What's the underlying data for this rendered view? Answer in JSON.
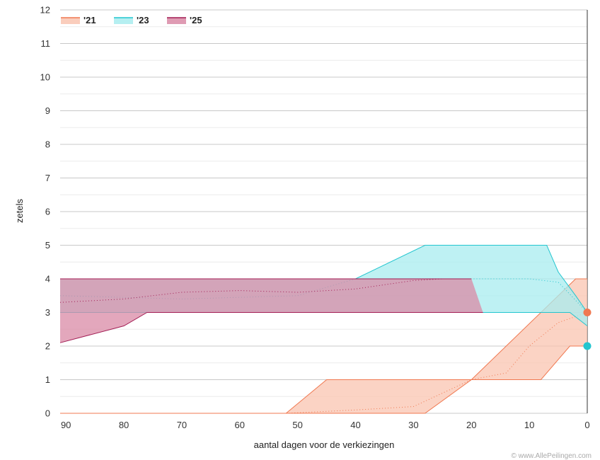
{
  "chart_data": {
    "type": "area",
    "xlabel": "aantal dagen voor de verkiezingen",
    "ylabel": "zetels",
    "xlim": [
      91,
      0
    ],
    "ylim": [
      0,
      12
    ],
    "x_ticks": [
      "90",
      "80",
      "70",
      "60",
      "50",
      "40",
      "30",
      "20",
      "10",
      "0"
    ],
    "y_ticks": [
      "0",
      "1",
      "2",
      "3",
      "4",
      "5",
      "6",
      "7",
      "8",
      "9",
      "10",
      "11",
      "12"
    ],
    "grid": true,
    "legend_position": "top-left",
    "credit": "© www.AllePeilingen.com",
    "series": [
      {
        "name": "'21",
        "color": "#f07850",
        "fill": "#f9c4b0",
        "upper": [
          [
            91,
            0
          ],
          [
            52,
            0
          ],
          [
            45,
            1
          ],
          [
            40,
            1
          ],
          [
            30,
            1
          ],
          [
            20,
            1
          ],
          [
            14,
            2
          ],
          [
            8,
            3
          ],
          [
            2,
            4
          ],
          [
            0,
            4
          ]
        ],
        "lower": [
          [
            91,
            0
          ],
          [
            50,
            0
          ],
          [
            40,
            0
          ],
          [
            28,
            0
          ],
          [
            20,
            1
          ],
          [
            15,
            1
          ],
          [
            8,
            1
          ],
          [
            3,
            2
          ],
          [
            0,
            2
          ]
        ],
        "trend": [
          [
            52,
            0
          ],
          [
            40,
            0.1
          ],
          [
            30,
            0.2
          ],
          [
            25,
            0.6
          ],
          [
            20,
            1
          ],
          [
            14,
            1.2
          ],
          [
            10,
            2
          ],
          [
            5,
            2.7
          ],
          [
            0,
            3
          ]
        ],
        "result": 3
      },
      {
        "name": "'23",
        "color": "#22c5cf",
        "fill": "#a8ecef",
        "upper": [
          [
            91,
            4
          ],
          [
            70,
            4
          ],
          [
            60,
            4
          ],
          [
            50,
            4
          ],
          [
            40,
            4
          ],
          [
            28,
            5
          ],
          [
            20,
            5
          ],
          [
            10,
            5
          ],
          [
            7,
            5
          ],
          [
            5,
            4.2
          ],
          [
            2,
            3.5
          ],
          [
            0,
            3
          ]
        ],
        "lower": [
          [
            91,
            3
          ],
          [
            80,
            3
          ],
          [
            70,
            3
          ],
          [
            60,
            3
          ],
          [
            50,
            3
          ],
          [
            40,
            3
          ],
          [
            30,
            3
          ],
          [
            20,
            3
          ],
          [
            8,
            3
          ],
          [
            3,
            3
          ],
          [
            0,
            2.6
          ]
        ],
        "trend": [
          [
            91,
            3.5
          ],
          [
            70,
            3.4
          ],
          [
            50,
            3.5
          ],
          [
            40,
            4
          ],
          [
            30,
            4
          ],
          [
            20,
            4
          ],
          [
            10,
            4
          ],
          [
            5,
            3.9
          ],
          [
            0,
            3
          ]
        ],
        "result": 2
      },
      {
        "name": "'25",
        "color": "#a31d54",
        "fill": "#d98aa6",
        "upper": [
          [
            91,
            4
          ],
          [
            80,
            4
          ],
          [
            70,
            4
          ],
          [
            60,
            4
          ],
          [
            50,
            4
          ],
          [
            40,
            4
          ],
          [
            30,
            4
          ],
          [
            20,
            4
          ]
        ],
        "lower": [
          [
            91,
            2.1
          ],
          [
            80,
            2.6
          ],
          [
            76,
            3
          ],
          [
            70,
            3
          ],
          [
            60,
            3
          ],
          [
            50,
            3
          ],
          [
            40,
            3
          ],
          [
            30,
            3
          ],
          [
            19,
            3
          ],
          [
            18,
            3
          ]
        ],
        "trend": [
          [
            91,
            3.3
          ],
          [
            80,
            3.4
          ],
          [
            70,
            3.6
          ],
          [
            60,
            3.65
          ],
          [
            50,
            3.6
          ],
          [
            40,
            3.7
          ],
          [
            30,
            3.95
          ],
          [
            25,
            4
          ]
        ]
      }
    ]
  }
}
